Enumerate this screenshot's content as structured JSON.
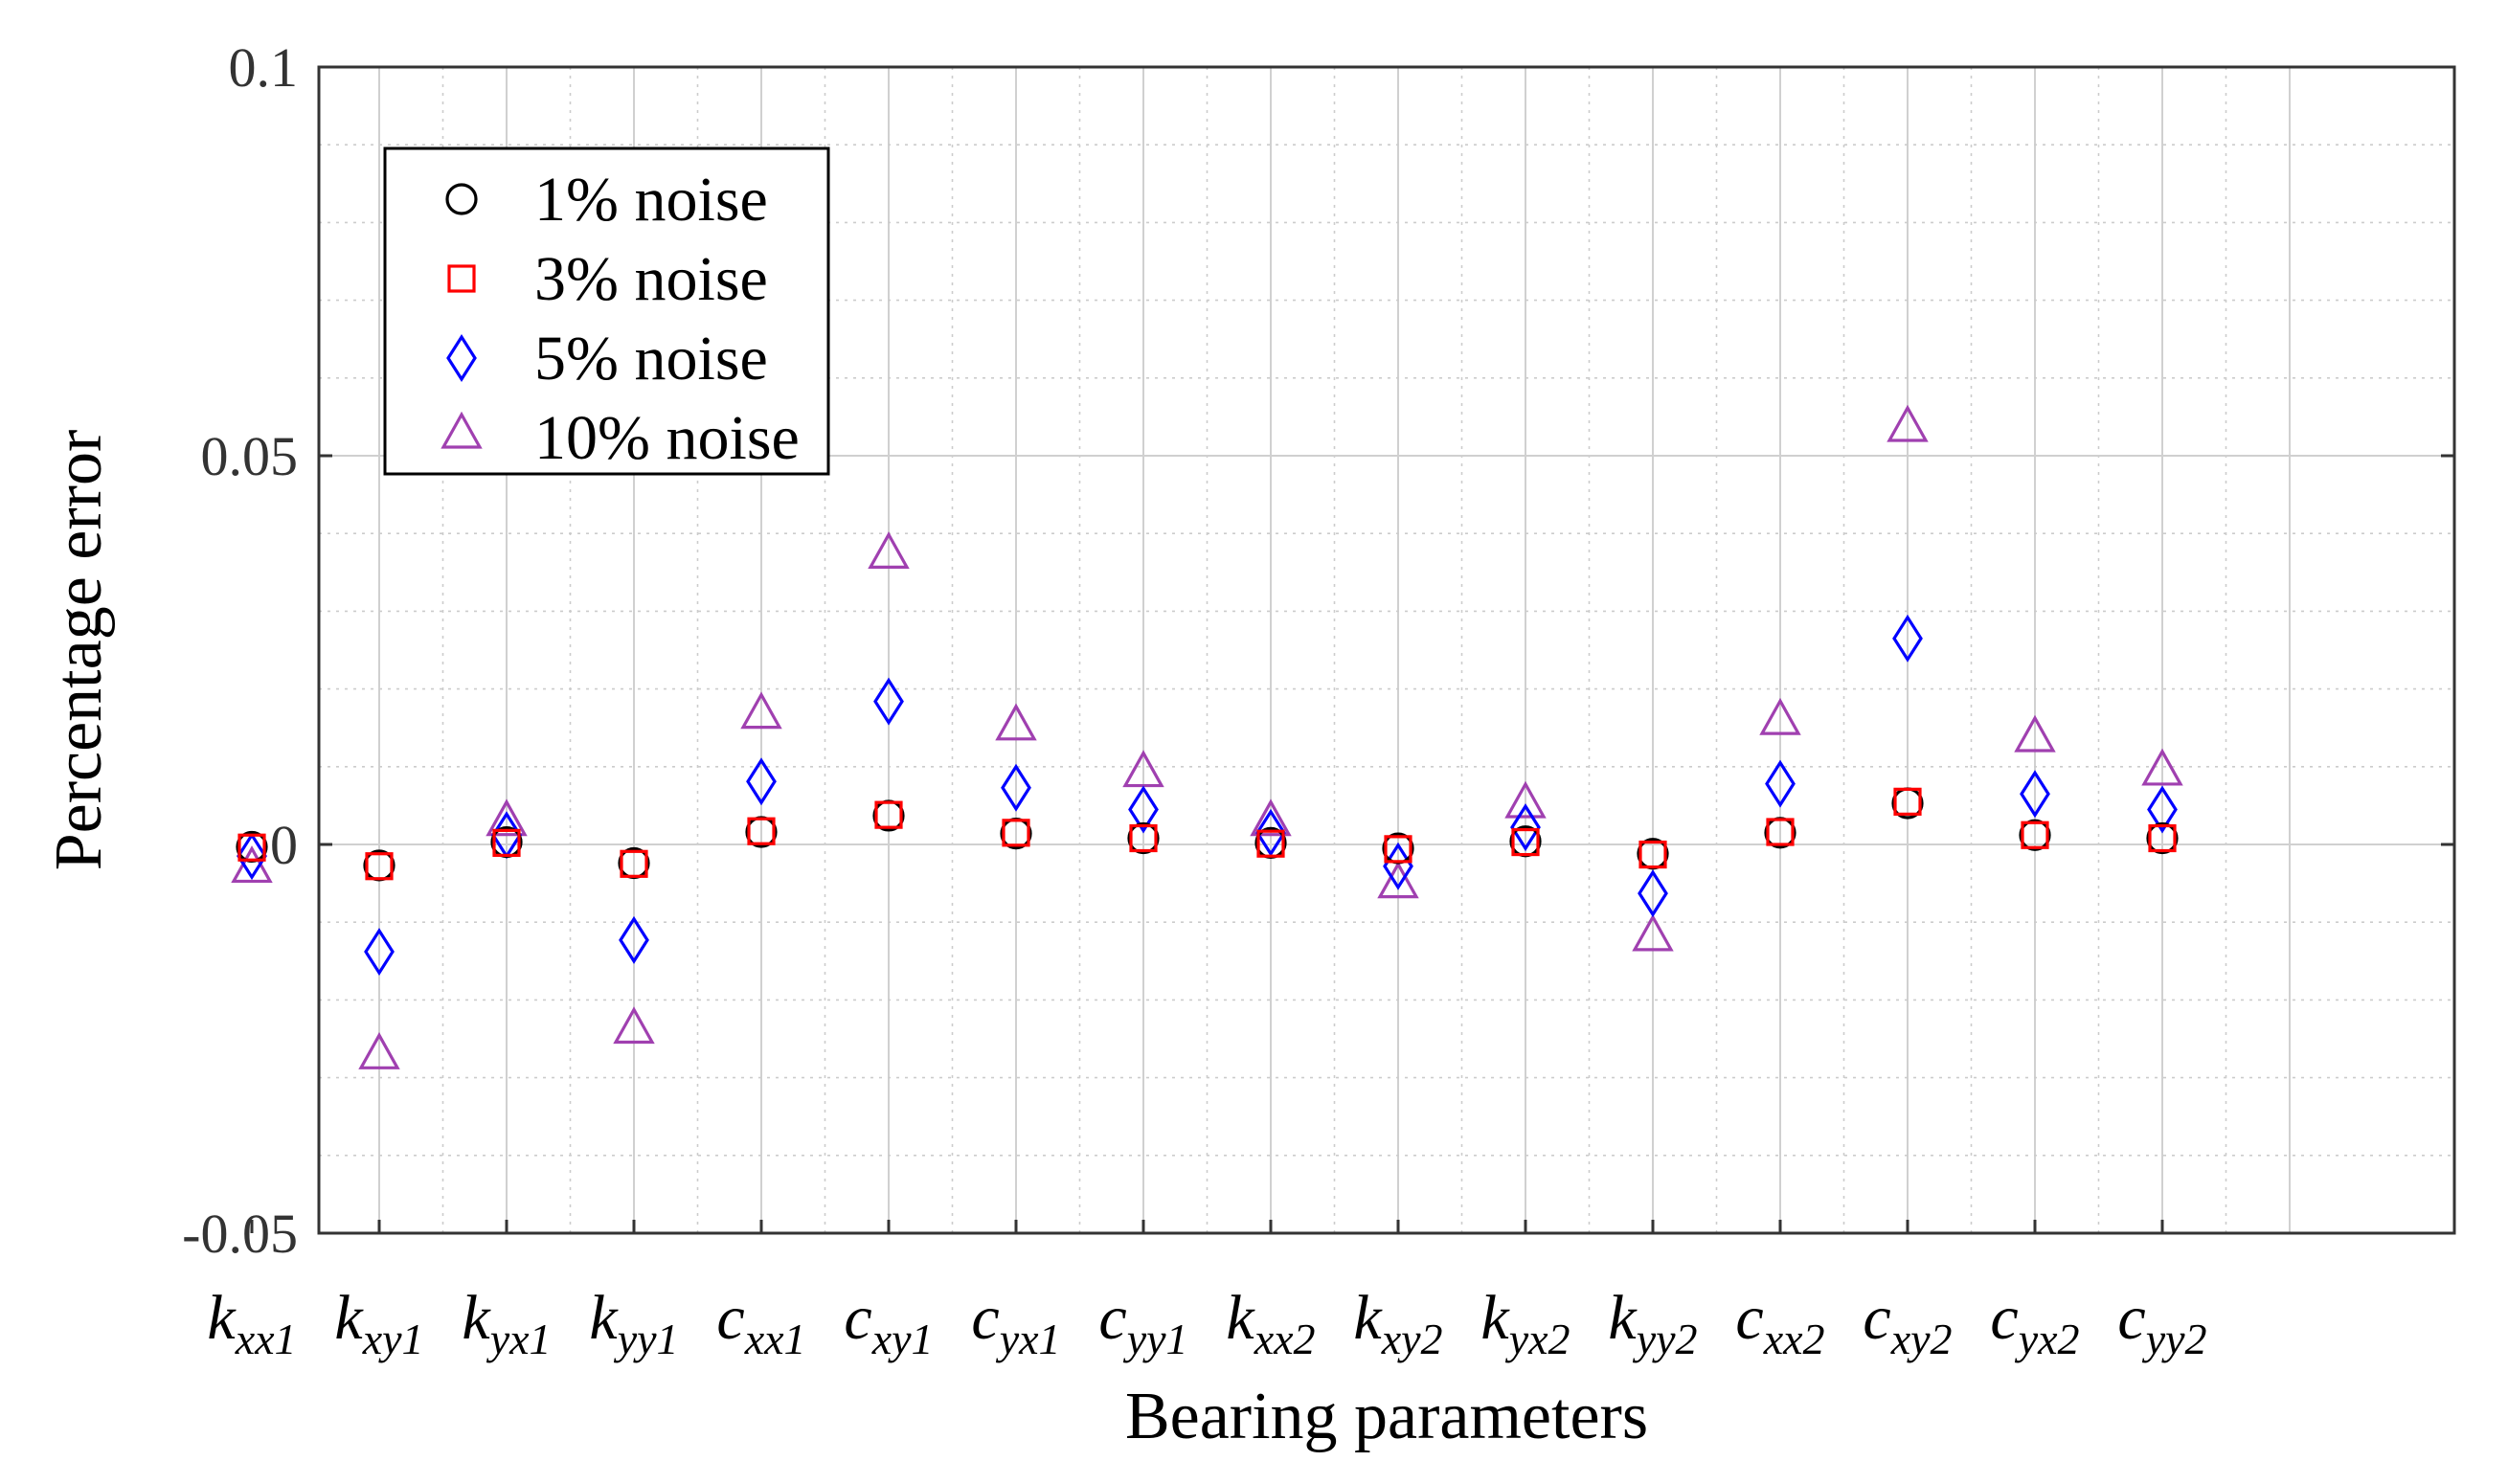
{
  "chart_data": {
    "type": "scatter",
    "xlabel": "Bearing parameters",
    "ylabel": "Percentage error",
    "ylim": [
      -0.05,
      0.1
    ],
    "yticks": [
      "0.1",
      "0.05",
      "0",
      "-0.05"
    ],
    "yticks_values": [
      0.1,
      0.05,
      0,
      -0.05
    ],
    "grid": true,
    "legend_position": "top-left",
    "categories": [
      {
        "main": "k",
        "sub": "xx1"
      },
      {
        "main": "k",
        "sub": "xy1"
      },
      {
        "main": "k",
        "sub": "yx1"
      },
      {
        "main": "k",
        "sub": "yy1"
      },
      {
        "main": "c",
        "sub": "xx1"
      },
      {
        "main": "c",
        "sub": "xy1"
      },
      {
        "main": "c",
        "sub": "yx1"
      },
      {
        "main": "c",
        "sub": "yy1"
      },
      {
        "main": "k",
        "sub": "xx2"
      },
      {
        "main": "k",
        "sub": "xy2"
      },
      {
        "main": "k",
        "sub": "yx2"
      },
      {
        "main": "k",
        "sub": "yy2"
      },
      {
        "main": "c",
        "sub": "xx2"
      },
      {
        "main": "c",
        "sub": "xy2"
      },
      {
        "main": "c",
        "sub": "yx2"
      },
      {
        "main": "c",
        "sub": "yy2"
      }
    ],
    "series": [
      {
        "name": "1% noise",
        "marker": "circle",
        "color": "#000000",
        "values": [
          -0.0003,
          -0.0027,
          0.0003,
          -0.0024,
          0.0016,
          0.0037,
          0.0014,
          0.0008,
          0.0002,
          -0.0005,
          0.0004,
          -0.0012,
          0.0015,
          0.0053,
          0.0012,
          0.0008
        ]
      },
      {
        "name": "3% noise",
        "marker": "square",
        "color": "#ff0000",
        "values": [
          -0.0004,
          -0.0028,
          0.0002,
          -0.0025,
          0.0017,
          0.0038,
          0.0015,
          0.0008,
          0.0001,
          -0.0006,
          0.0003,
          -0.0013,
          0.0016,
          0.0055,
          0.0012,
          0.0008
        ]
      },
      {
        "name": "5% noise",
        "marker": "diamond",
        "color": "#0000ff",
        "values": [
          -0.0015,
          -0.0138,
          0.0012,
          -0.0123,
          0.0081,
          0.0184,
          0.0073,
          0.0045,
          0.0015,
          -0.0028,
          0.0022,
          -0.0063,
          0.0078,
          0.0265,
          0.0065,
          0.0045
        ]
      },
      {
        "name": "10% noise",
        "marker": "triangle",
        "color": "#a040b0",
        "values": [
          -0.0035,
          -0.0275,
          0.0025,
          -0.0242,
          0.0163,
          0.0369,
          0.0148,
          0.0088,
          0.0025,
          -0.0055,
          0.0048,
          -0.0123,
          0.0155,
          0.0532,
          0.0133,
          0.009
        ]
      }
    ]
  }
}
